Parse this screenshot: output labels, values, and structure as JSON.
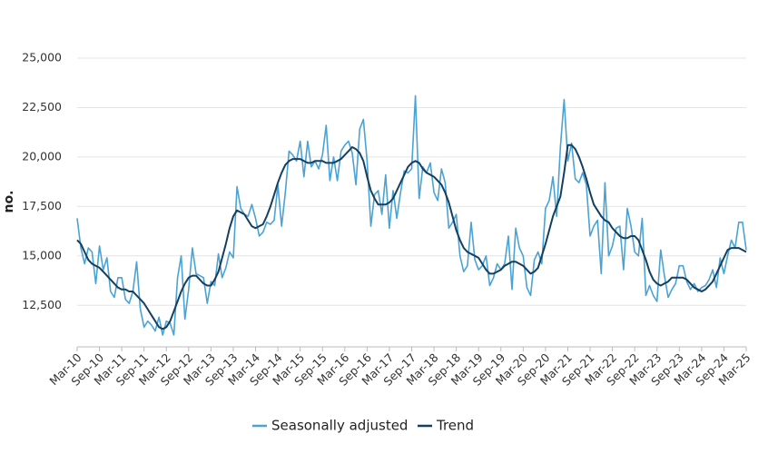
{
  "chart_data": {
    "type": "line",
    "y_label": "no.",
    "ylim": [
      10400,
      25000
    ],
    "yticks": [
      {
        "value": 12500,
        "label": "12,500"
      },
      {
        "value": 15000,
        "label": "15,000"
      },
      {
        "value": 17500,
        "label": "17,500"
      },
      {
        "value": 20000,
        "label": "20,000"
      },
      {
        "value": 22500,
        "label": "22,500"
      },
      {
        "value": 25000,
        "label": "25,000"
      }
    ],
    "grid": true,
    "legend": "bottom",
    "categories": [
      "Mar-10",
      null,
      null,
      null,
      null,
      null,
      "Sep-10",
      null,
      null,
      null,
      null,
      null,
      "Mar-11",
      null,
      null,
      null,
      null,
      null,
      "Sep-11",
      null,
      null,
      null,
      null,
      null,
      "Mar-12",
      null,
      null,
      null,
      null,
      null,
      "Sep-12",
      null,
      null,
      null,
      null,
      null,
      "Mar-13",
      null,
      null,
      null,
      null,
      null,
      "Sep-13",
      null,
      null,
      null,
      null,
      null,
      "Mar-14",
      null,
      null,
      null,
      null,
      null,
      "Sep-14",
      null,
      null,
      null,
      null,
      null,
      "Mar-15",
      null,
      null,
      null,
      null,
      null,
      "Sep-15",
      null,
      null,
      null,
      null,
      null,
      "Mar-16",
      null,
      null,
      null,
      null,
      null,
      "Sep-16",
      null,
      null,
      null,
      null,
      null,
      "Mar-17",
      null,
      null,
      null,
      null,
      null,
      "Sep-17",
      null,
      null,
      null,
      null,
      null,
      "Mar-18",
      null,
      null,
      null,
      null,
      null,
      "Sep-18",
      null,
      null,
      null,
      null,
      null,
      "Mar-19",
      null,
      null,
      null,
      null,
      null,
      "Sep-19",
      null,
      null,
      null,
      null,
      null,
      "Mar-20",
      null,
      null,
      null,
      null,
      null,
      "Sep-20",
      null,
      null,
      null,
      null,
      null,
      "Mar-21",
      null,
      null,
      null,
      null,
      null,
      "Sep-21",
      null,
      null,
      null,
      null,
      null,
      "Mar-22",
      null,
      null,
      null,
      null,
      null,
      "Sep-22",
      null,
      null,
      null,
      null,
      null,
      "Mar-23",
      null,
      null,
      null,
      null,
      null,
      "Sep-23",
      null,
      null,
      null,
      null,
      null,
      "Mar-24",
      null,
      null,
      null,
      null,
      null,
      "Sep-24",
      null,
      null,
      null,
      null,
      null,
      "Mar-25"
    ],
    "series": [
      {
        "name": "Seasonally adjusted",
        "color": "#4aa3d3",
        "values": [
          16900,
          15400,
          14600,
          15400,
          15200,
          13600,
          15500,
          14300,
          14900,
          13200,
          12900,
          13900,
          13900,
          12800,
          12600,
          13200,
          14700,
          12300,
          11400,
          11700,
          11500,
          11200,
          11900,
          11000,
          11700,
          11600,
          11000,
          13900,
          15000,
          11800,
          13300,
          15400,
          14100,
          14000,
          13900,
          12600,
          13700,
          13500,
          15100,
          13900,
          14400,
          15200,
          14900,
          18500,
          17400,
          17100,
          17000,
          17600,
          16900,
          16000,
          16200,
          16700,
          16600,
          16800,
          18600,
          16500,
          18200,
          20300,
          20100,
          19800,
          20800,
          19000,
          20800,
          19500,
          19800,
          19400,
          20100,
          21600,
          18800,
          20000,
          18800,
          20300,
          20600,
          20800,
          20200,
          18600,
          21400,
          21900,
          19800,
          16500,
          18100,
          18300,
          17100,
          19100,
          16400,
          18300,
          16900,
          18200,
          19300,
          19200,
          19400,
          23100,
          17900,
          19500,
          19200,
          19700,
          18200,
          17800,
          19400,
          18700,
          16400,
          16700,
          17100,
          15000,
          14200,
          14500,
          16700,
          14800,
          14300,
          14500,
          15000,
          13500,
          13900,
          14600,
          14300,
          14600,
          16000,
          13300,
          16400,
          15400,
          15000,
          13400,
          13000,
          14800,
          15200,
          14600,
          17400,
          17800,
          19000,
          17000,
          20500,
          22900,
          19800,
          20700,
          18900,
          18700,
          19200,
          18600,
          16000,
          16500,
          16800,
          14100,
          18700,
          15000,
          15500,
          16400,
          16500,
          14300,
          17400,
          16500,
          15200,
          15000,
          16900,
          13000,
          13500,
          13000,
          12700,
          15300,
          14000,
          12900,
          13300,
          13600,
          14500,
          14500,
          13700,
          13300,
          13600,
          13200,
          13400,
          13500,
          13800,
          14300,
          13400,
          14900,
          14100,
          15000,
          15800,
          15400,
          16700,
          16700,
          15300
        ]
      },
      {
        "name": "Trend",
        "color": "#143f61",
        "values": [
          15800,
          15600,
          15200,
          14800,
          14600,
          14500,
          14400,
          14200,
          14000,
          13800,
          13600,
          13400,
          13300,
          13300,
          13200,
          13200,
          13000,
          12800,
          12600,
          12300,
          12000,
          11700,
          11400,
          11300,
          11400,
          11700,
          12200,
          12700,
          13200,
          13600,
          13900,
          14000,
          14000,
          13800,
          13600,
          13500,
          13500,
          13800,
          14200,
          14900,
          15600,
          16400,
          17000,
          17300,
          17200,
          17100,
          16800,
          16500,
          16400,
          16500,
          16600,
          17000,
          17500,
          18100,
          18700,
          19200,
          19600,
          19800,
          19900,
          19900,
          19900,
          19800,
          19700,
          19700,
          19800,
          19800,
          19800,
          19700,
          19700,
          19700,
          19800,
          19900,
          20100,
          20300,
          20500,
          20400,
          20200,
          19800,
          19000,
          18300,
          17900,
          17600,
          17600,
          17600,
          17700,
          17900,
          18300,
          18700,
          19100,
          19500,
          19700,
          19800,
          19700,
          19400,
          19200,
          19100,
          19000,
          18800,
          18600,
          18200,
          17700,
          17000,
          16300,
          15800,
          15400,
          15200,
          15100,
          15000,
          14900,
          14600,
          14300,
          14100,
          14100,
          14200,
          14300,
          14500,
          14600,
          14700,
          14700,
          14600,
          14500,
          14300,
          14100,
          14200,
          14400,
          15000,
          15600,
          16300,
          17000,
          17500,
          18000,
          19200,
          20600,
          20600,
          20400,
          20000,
          19500,
          18900,
          18200,
          17600,
          17300,
          17000,
          16800,
          16700,
          16400,
          16200,
          16000,
          15900,
          15900,
          16000,
          16000,
          15800,
          15300,
          14800,
          14200,
          13800,
          13600,
          13500,
          13600,
          13700,
          13900,
          13900,
          13900,
          13900,
          13800,
          13600,
          13400,
          13300,
          13200,
          13300,
          13500,
          13700,
          14100,
          14500,
          14900,
          15300,
          15400,
          15400,
          15400,
          15300,
          15200
        ]
      }
    ]
  }
}
